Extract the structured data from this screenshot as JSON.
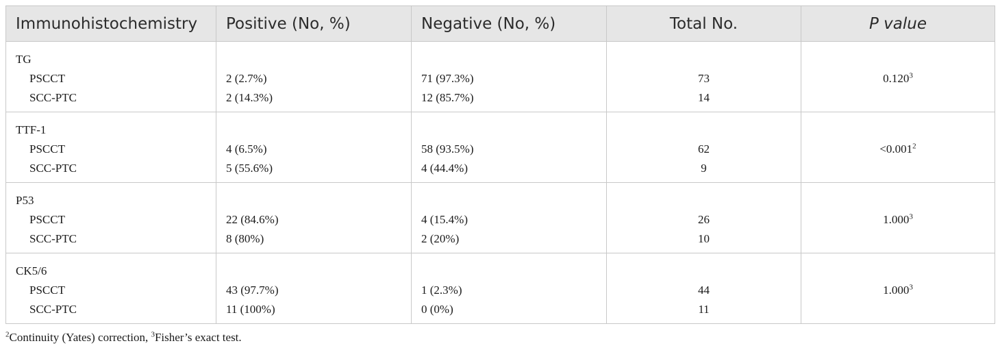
{
  "headers": {
    "col1": "Immunohistochemistry",
    "col2": "Positive (No, %)",
    "col3": "Negative (No, %)",
    "col4": "Total No.",
    "col5": "P value"
  },
  "groups": [
    {
      "marker": "TG",
      "rows": [
        {
          "label": "PSCCT",
          "positive": "2 (2.7%)",
          "negative": "71 (97.3%)",
          "total": "73"
        },
        {
          "label": "SCC-PTC",
          "positive": "2 (14.3%)",
          "negative": "12 (85.7%)",
          "total": "14"
        }
      ],
      "p_value": "0.120",
      "p_sup": "3"
    },
    {
      "marker": "TTF-1",
      "rows": [
        {
          "label": "PSCCT",
          "positive": "4 (6.5%)",
          "negative": "58 (93.5%)",
          "total": "62"
        },
        {
          "label": "SCC-PTC",
          "positive": "5 (55.6%)",
          "negative": "4 (44.4%)",
          "total": "9"
        }
      ],
      "p_value": "<0.001",
      "p_sup": "2"
    },
    {
      "marker": "P53",
      "rows": [
        {
          "label": "PSCCT",
          "positive": "22 (84.6%)",
          "negative": "4 (15.4%)",
          "total": "26"
        },
        {
          "label": "SCC-PTC",
          "positive": "8 (80%)",
          "negative": "2 (20%)",
          "total": "10"
        }
      ],
      "p_value": "1.000",
      "p_sup": "3"
    },
    {
      "marker": "CK5/6",
      "rows": [
        {
          "label": "PSCCT",
          "positive": "43 (97.7%)",
          "negative": "1 (2.3%)",
          "total": "44"
        },
        {
          "label": "SCC-PTC",
          "positive": "11 (100%)",
          "negative": "0 (0%)",
          "total": "11"
        }
      ],
      "p_value": "1.000",
      "p_sup": "3"
    }
  ],
  "footnote": {
    "sup1": "2",
    "text1": "Continuity (Yates) correction, ",
    "sup2": "3",
    "text2": "Fisher’s exact test."
  }
}
